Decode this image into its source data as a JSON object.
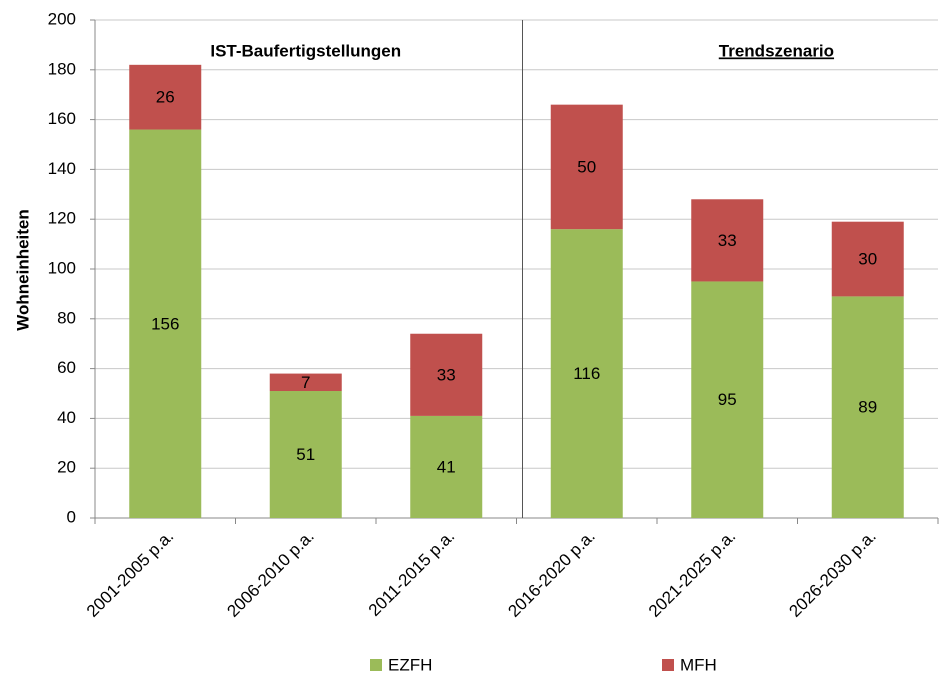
{
  "chart_data": {
    "type": "stacked_bar",
    "y_label": "Wohneinheiten",
    "annotations": [
      "IST-Baufertigstellungen",
      "Trendszenario"
    ],
    "categories": [
      "2001-2005 p.a.",
      "2006-2010 p.a.",
      "2011-2015 p.a.",
      "2016-2020 p.a.",
      "2021-2025 p.a.",
      "2026-2030 p.a."
    ],
    "series": [
      {
        "name": "EZFH",
        "color": "#9bbb59",
        "values": [
          156,
          51,
          41,
          116,
          95,
          89
        ]
      },
      {
        "name": "MFH",
        "color": "#c0504d",
        "values": [
          26,
          7,
          33,
          50,
          33,
          30
        ]
      }
    ],
    "ylim": [
      0,
      200
    ],
    "yticks": [
      0,
      20,
      40,
      60,
      80,
      100,
      120,
      140,
      160,
      180,
      200
    ],
    "grid": true
  }
}
